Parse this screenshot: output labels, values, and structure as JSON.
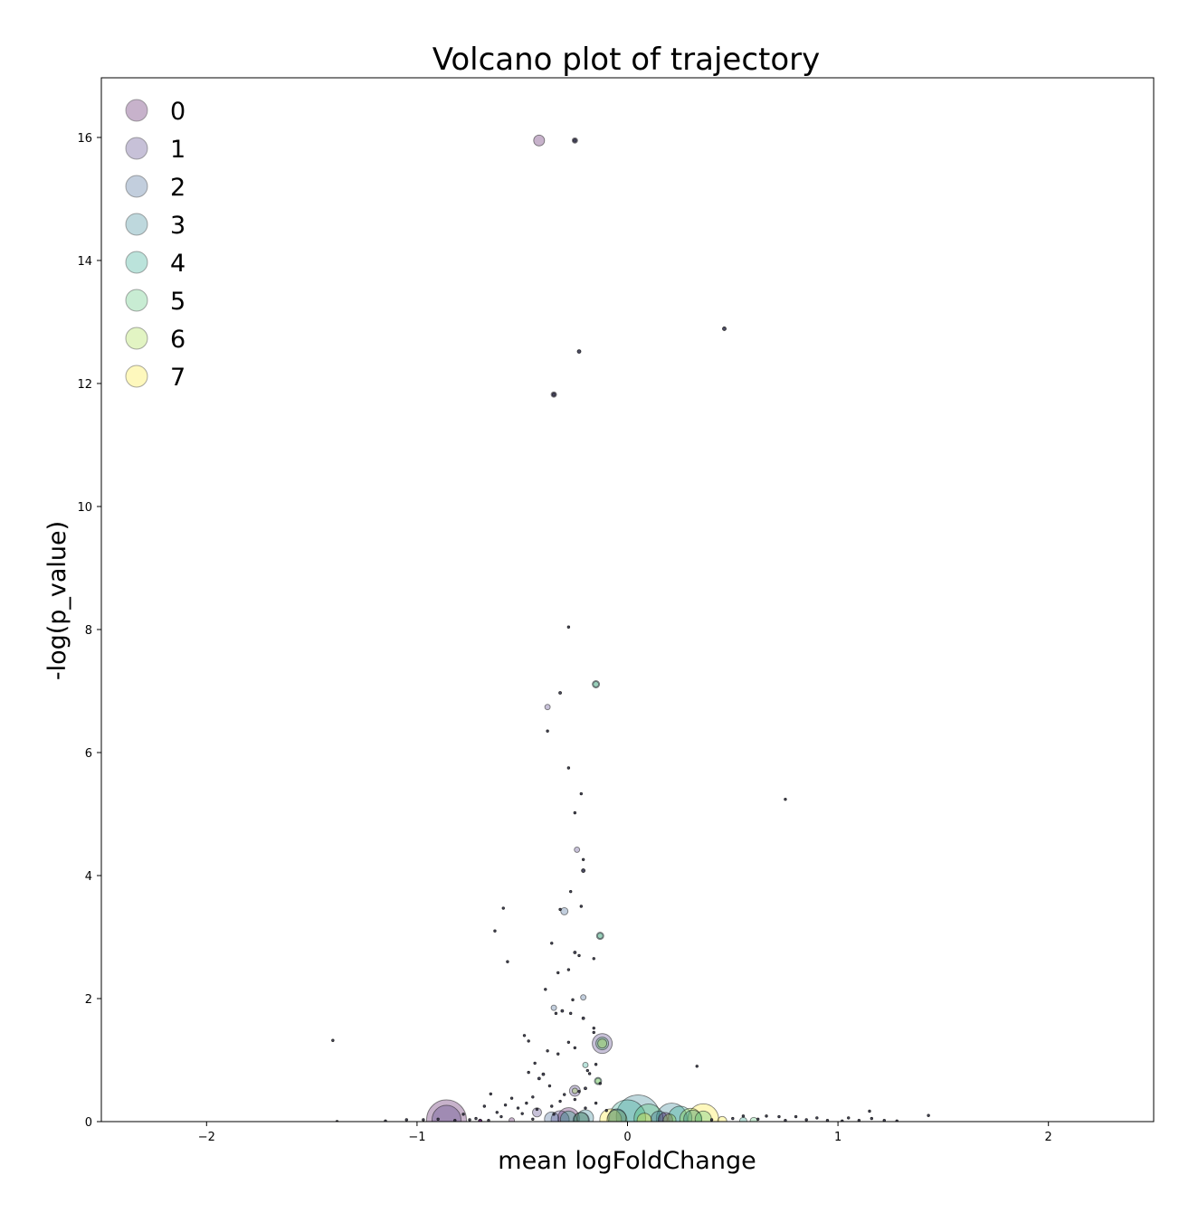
{
  "chart_data": {
    "type": "scatter",
    "title": "Volcano plot of trajectory",
    "xlabel": "mean logFoldChange",
    "ylabel": "-log(p_value)",
    "xlim": [
      -2.5,
      2.5
    ],
    "ylim": [
      0,
      16.97
    ],
    "xticks": [
      -2,
      -1,
      0,
      1,
      2
    ],
    "xtick_labels": [
      "−2",
      "−1",
      "0",
      "1",
      "2"
    ],
    "yticks": [
      0,
      2,
      4,
      6,
      8,
      10,
      12,
      14,
      16
    ],
    "ytick_labels": [
      "0",
      "2",
      "4",
      "6",
      "8",
      "10",
      "12",
      "14",
      "16"
    ],
    "grid": false,
    "legend": {
      "placement": "top-left",
      "entries": [
        "0",
        "1",
        "2",
        "3",
        "4",
        "5",
        "6",
        "7"
      ],
      "colors": [
        "#440154",
        "#46327e",
        "#365c8d",
        "#277f8e",
        "#1fa187",
        "#4ac16d",
        "#a0da39",
        "#fde725"
      ]
    },
    "marker_alpha": 0.3,
    "series": [
      {
        "name": "0",
        "color": "#440154",
        "points": [
          {
            "x": -0.86,
            "y": 0.03,
            "size": 22
          },
          {
            "x": -0.28,
            "y": 0.05,
            "size": 12
          },
          {
            "x": -0.42,
            "y": 15.95,
            "size": 6
          },
          {
            "x": -0.22,
            "y": 0.02,
            "size": 9
          },
          {
            "x": 0.18,
            "y": 0.03,
            "size": 8
          },
          {
            "x": -0.55,
            "y": 0.02,
            "size": 3
          },
          {
            "x": -0.7,
            "y": 0.01,
            "size": 2
          }
        ]
      },
      {
        "name": "1",
        "color": "#46327e",
        "points": [
          {
            "x": -0.86,
            "y": 0.03,
            "size": 16
          },
          {
            "x": -0.32,
            "y": 0.03,
            "size": 10
          },
          {
            "x": -0.25,
            "y": 0.5,
            "size": 6
          },
          {
            "x": -0.12,
            "y": 1.27,
            "size": 11
          },
          {
            "x": -0.43,
            "y": 0.15,
            "size": 5
          },
          {
            "x": -0.25,
            "y": 15.95,
            "size": 3
          },
          {
            "x": -0.35,
            "y": 11.82,
            "size": 3
          },
          {
            "x": -0.38,
            "y": 6.74,
            "size": 3
          },
          {
            "x": -0.24,
            "y": 4.42,
            "size": 3
          }
        ]
      },
      {
        "name": "2",
        "color": "#365c8d",
        "points": [
          {
            "x": -0.36,
            "y": 0.04,
            "size": 8
          },
          {
            "x": -0.05,
            "y": 0.06,
            "size": 10
          },
          {
            "x": 0.15,
            "y": 0.04,
            "size": 9
          },
          {
            "x": -0.3,
            "y": 3.42,
            "size": 4
          },
          {
            "x": -0.35,
            "y": 1.85,
            "size": 3
          },
          {
            "x": -0.21,
            "y": 2.02,
            "size": 3
          }
        ]
      },
      {
        "name": "3",
        "color": "#277f8e",
        "points": [
          {
            "x": 0.05,
            "y": 0.08,
            "size": 24
          },
          {
            "x": 0.21,
            "y": 0.05,
            "size": 17
          },
          {
            "x": -0.2,
            "y": 0.06,
            "size": 9
          },
          {
            "x": 0.31,
            "y": 0.04,
            "size": 10
          },
          {
            "x": -0.15,
            "y": 7.11,
            "size": 4
          },
          {
            "x": -0.13,
            "y": 3.02,
            "size": 4
          }
        ]
      },
      {
        "name": "4",
        "color": "#1fa187",
        "points": [
          {
            "x": 0.0,
            "y": 0.06,
            "size": 20
          },
          {
            "x": -0.28,
            "y": 0.04,
            "size": 9
          },
          {
            "x": 0.25,
            "y": 0.06,
            "size": 13
          },
          {
            "x": -0.14,
            "y": 0.66,
            "size": 4
          },
          {
            "x": -0.2,
            "y": 0.92,
            "size": 3
          },
          {
            "x": 0.55,
            "y": 0.01,
            "size": 4
          }
        ]
      },
      {
        "name": "5",
        "color": "#4ac16d",
        "points": [
          {
            "x": -0.12,
            "y": 1.27,
            "size": 7
          },
          {
            "x": -0.15,
            "y": 7.11,
            "size": 3
          },
          {
            "x": -0.13,
            "y": 3.02,
            "size": 3
          },
          {
            "x": 0.1,
            "y": 0.05,
            "size": 16
          },
          {
            "x": -0.22,
            "y": 0.03,
            "size": 8
          },
          {
            "x": 0.36,
            "y": 0.04,
            "size": 9
          },
          {
            "x": 0.6,
            "y": 0.01,
            "size": 4
          }
        ]
      },
      {
        "name": "6",
        "color": "#a0da39",
        "points": [
          {
            "x": -0.12,
            "y": 1.27,
            "size": 5
          },
          {
            "x": -0.14,
            "y": 0.66,
            "size": 3
          },
          {
            "x": -0.25,
            "y": 0.5,
            "size": 3
          },
          {
            "x": -0.05,
            "y": 0.03,
            "size": 11
          },
          {
            "x": 0.3,
            "y": 0.04,
            "size": 12
          },
          {
            "x": 0.2,
            "y": 0.02,
            "size": 7
          }
        ]
      },
      {
        "name": "7",
        "color": "#fde725",
        "points": [
          {
            "x": 0.36,
            "y": 0.04,
            "size": 17
          },
          {
            "x": -0.08,
            "y": 0.03,
            "size": 12
          },
          {
            "x": 0.08,
            "y": 0.02,
            "size": 8
          },
          {
            "x": 0.45,
            "y": 0.01,
            "size": 5
          }
        ]
      },
      {
        "name": "",
        "color": "#2d2d48",
        "points": [
          {
            "x": -0.25,
            "y": 15.95,
            "size": 2
          },
          {
            "x": -0.23,
            "y": 12.52,
            "size": 2
          },
          {
            "x": 0.46,
            "y": 12.89,
            "size": 2
          },
          {
            "x": -0.35,
            "y": 11.82,
            "size": 2
          },
          {
            "x": -0.28,
            "y": 8.04,
            "size": 1.3
          },
          {
            "x": -0.32,
            "y": 6.97,
            "size": 1.5
          },
          {
            "x": -0.38,
            "y": 6.35,
            "size": 1.3
          },
          {
            "x": -0.28,
            "y": 5.75,
            "size": 1.3
          },
          {
            "x": -0.22,
            "y": 5.33,
            "size": 1.3
          },
          {
            "x": 0.75,
            "y": 5.24,
            "size": 1.3
          },
          {
            "x": -0.25,
            "y": 5.02,
            "size": 1.3
          },
          {
            "x": -0.21,
            "y": 4.26,
            "size": 1.3
          },
          {
            "x": -0.21,
            "y": 4.08,
            "size": 2
          },
          {
            "x": -0.27,
            "y": 3.74,
            "size": 1.3
          },
          {
            "x": -0.59,
            "y": 3.47,
            "size": 1.3
          },
          {
            "x": -0.22,
            "y": 3.5,
            "size": 1.3
          },
          {
            "x": -0.32,
            "y": 3.45,
            "size": 1.3
          },
          {
            "x": -0.63,
            "y": 3.1,
            "size": 1.3
          },
          {
            "x": -0.36,
            "y": 2.9,
            "size": 1.3
          },
          {
            "x": -0.25,
            "y": 2.75,
            "size": 1.5
          },
          {
            "x": -0.23,
            "y": 2.7,
            "size": 1.3
          },
          {
            "x": -0.16,
            "y": 2.65,
            "size": 1.3
          },
          {
            "x": -0.57,
            "y": 2.6,
            "size": 1.3
          },
          {
            "x": -0.28,
            "y": 2.47,
            "size": 1.3
          },
          {
            "x": -0.33,
            "y": 2.42,
            "size": 1.3
          },
          {
            "x": -0.39,
            "y": 2.15,
            "size": 1.3
          },
          {
            "x": -0.26,
            "y": 1.98,
            "size": 1.3
          },
          {
            "x": -0.31,
            "y": 1.8,
            "size": 1.5
          },
          {
            "x": -0.34,
            "y": 1.76,
            "size": 1.3
          },
          {
            "x": -0.27,
            "y": 1.76,
            "size": 1.3
          },
          {
            "x": -0.21,
            "y": 1.68,
            "size": 1.5
          },
          {
            "x": -0.16,
            "y": 1.52,
            "size": 1.3
          },
          {
            "x": -0.16,
            "y": 1.45,
            "size": 1.3
          },
          {
            "x": -0.49,
            "y": 1.4,
            "size": 1.3
          },
          {
            "x": -1.4,
            "y": 1.32,
            "size": 1.3
          },
          {
            "x": -0.47,
            "y": 1.31,
            "size": 1.3
          },
          {
            "x": -0.28,
            "y": 1.29,
            "size": 1.3
          },
          {
            "x": -0.25,
            "y": 1.2,
            "size": 1.3
          },
          {
            "x": -0.38,
            "y": 1.15,
            "size": 1.3
          },
          {
            "x": -0.33,
            "y": 1.1,
            "size": 1.3
          },
          {
            "x": -0.44,
            "y": 0.95,
            "size": 1.3
          },
          {
            "x": -0.15,
            "y": 0.93,
            "size": 1.3
          },
          {
            "x": 0.33,
            "y": 0.9,
            "size": 1.3
          },
          {
            "x": -0.19,
            "y": 0.83,
            "size": 1.3
          },
          {
            "x": -0.47,
            "y": 0.8,
            "size": 1.3
          },
          {
            "x": -0.18,
            "y": 0.78,
            "size": 1.3
          },
          {
            "x": -0.4,
            "y": 0.77,
            "size": 1.5
          },
          {
            "x": -0.42,
            "y": 0.7,
            "size": 1.5
          },
          {
            "x": -0.13,
            "y": 0.62,
            "size": 1.3
          },
          {
            "x": -0.37,
            "y": 0.58,
            "size": 1.3
          },
          {
            "x": -0.2,
            "y": 0.54,
            "size": 1.5
          },
          {
            "x": -0.23,
            "y": 0.49,
            "size": 1.3
          },
          {
            "x": -0.65,
            "y": 0.45,
            "size": 1.3
          },
          {
            "x": -0.3,
            "y": 0.44,
            "size": 1.3
          },
          {
            "x": -0.45,
            "y": 0.4,
            "size": 1.3
          },
          {
            "x": -0.55,
            "y": 0.38,
            "size": 1.3
          },
          {
            "x": -0.25,
            "y": 0.36,
            "size": 1.3
          },
          {
            "x": -0.32,
            "y": 0.33,
            "size": 1.3
          },
          {
            "x": -0.48,
            "y": 0.3,
            "size": 1.3
          },
          {
            "x": -0.58,
            "y": 0.27,
            "size": 1.3
          },
          {
            "x": -0.68,
            "y": 0.25,
            "size": 1.3
          },
          {
            "x": -0.36,
            "y": 0.25,
            "size": 1.3
          },
          {
            "x": -0.52,
            "y": 0.22,
            "size": 1.3
          },
          {
            "x": -0.43,
            "y": 0.2,
            "size": 1.3
          },
          {
            "x": 1.15,
            "y": 0.17,
            "size": 1.3
          },
          {
            "x": -0.62,
            "y": 0.15,
            "size": 1.3
          },
          {
            "x": -0.5,
            "y": 0.13,
            "size": 1.3
          },
          {
            "x": -0.78,
            "y": 0.12,
            "size": 1.3
          },
          {
            "x": 1.43,
            "y": 0.1,
            "size": 1.3
          },
          {
            "x": 0.55,
            "y": 0.09,
            "size": 1.3
          },
          {
            "x": 0.66,
            "y": 0.09,
            "size": 1.3
          },
          {
            "x": 0.72,
            "y": 0.08,
            "size": 1.3
          },
          {
            "x": 0.8,
            "y": 0.08,
            "size": 1.3
          },
          {
            "x": -0.6,
            "y": 0.08,
            "size": 1.3
          },
          {
            "x": 0.9,
            "y": 0.06,
            "size": 1.3
          },
          {
            "x": 1.05,
            "y": 0.06,
            "size": 1.3
          },
          {
            "x": 1.16,
            "y": 0.05,
            "size": 1.3
          },
          {
            "x": -0.72,
            "y": 0.05,
            "size": 1.3
          },
          {
            "x": -0.9,
            "y": 0.04,
            "size": 1.3
          },
          {
            "x": -0.97,
            "y": 0.03,
            "size": 1.3
          },
          {
            "x": -1.05,
            "y": 0.03,
            "size": 1.3
          },
          {
            "x": 1.22,
            "y": 0.02,
            "size": 1.3
          },
          {
            "x": 1.28,
            "y": 0.01,
            "size": 1.3
          },
          {
            "x": -1.15,
            "y": 0.01,
            "size": 1.3
          },
          {
            "x": -1.38,
            "y": 0.0,
            "size": 1.3
          },
          {
            "x": 0.95,
            "y": 0.02,
            "size": 1.3
          },
          {
            "x": 0.85,
            "y": 0.03,
            "size": 1.3
          },
          {
            "x": 0.75,
            "y": 0.02,
            "size": 1.3
          },
          {
            "x": 0.62,
            "y": 0.04,
            "size": 1.3
          },
          {
            "x": 0.5,
            "y": 0.05,
            "size": 1.3
          },
          {
            "x": -0.82,
            "y": 0.02,
            "size": 1.3
          },
          {
            "x": -0.75,
            "y": 0.03,
            "size": 1.3
          },
          {
            "x": -0.66,
            "y": 0.02,
            "size": 1.3
          },
          {
            "x": -0.45,
            "y": 0.04,
            "size": 1.3
          },
          {
            "x": -0.35,
            "y": 0.12,
            "size": 1.3
          },
          {
            "x": -0.2,
            "y": 0.22,
            "size": 1.3
          },
          {
            "x": -0.15,
            "y": 0.3,
            "size": 1.3
          },
          {
            "x": -0.1,
            "y": 0.18,
            "size": 1.3
          },
          {
            "x": 0.4,
            "y": 0.03,
            "size": 1.3
          },
          {
            "x": 1.02,
            "y": 0.01,
            "size": 1.3
          },
          {
            "x": 1.1,
            "y": 0.02,
            "size": 1.3
          }
        ]
      }
    ]
  }
}
